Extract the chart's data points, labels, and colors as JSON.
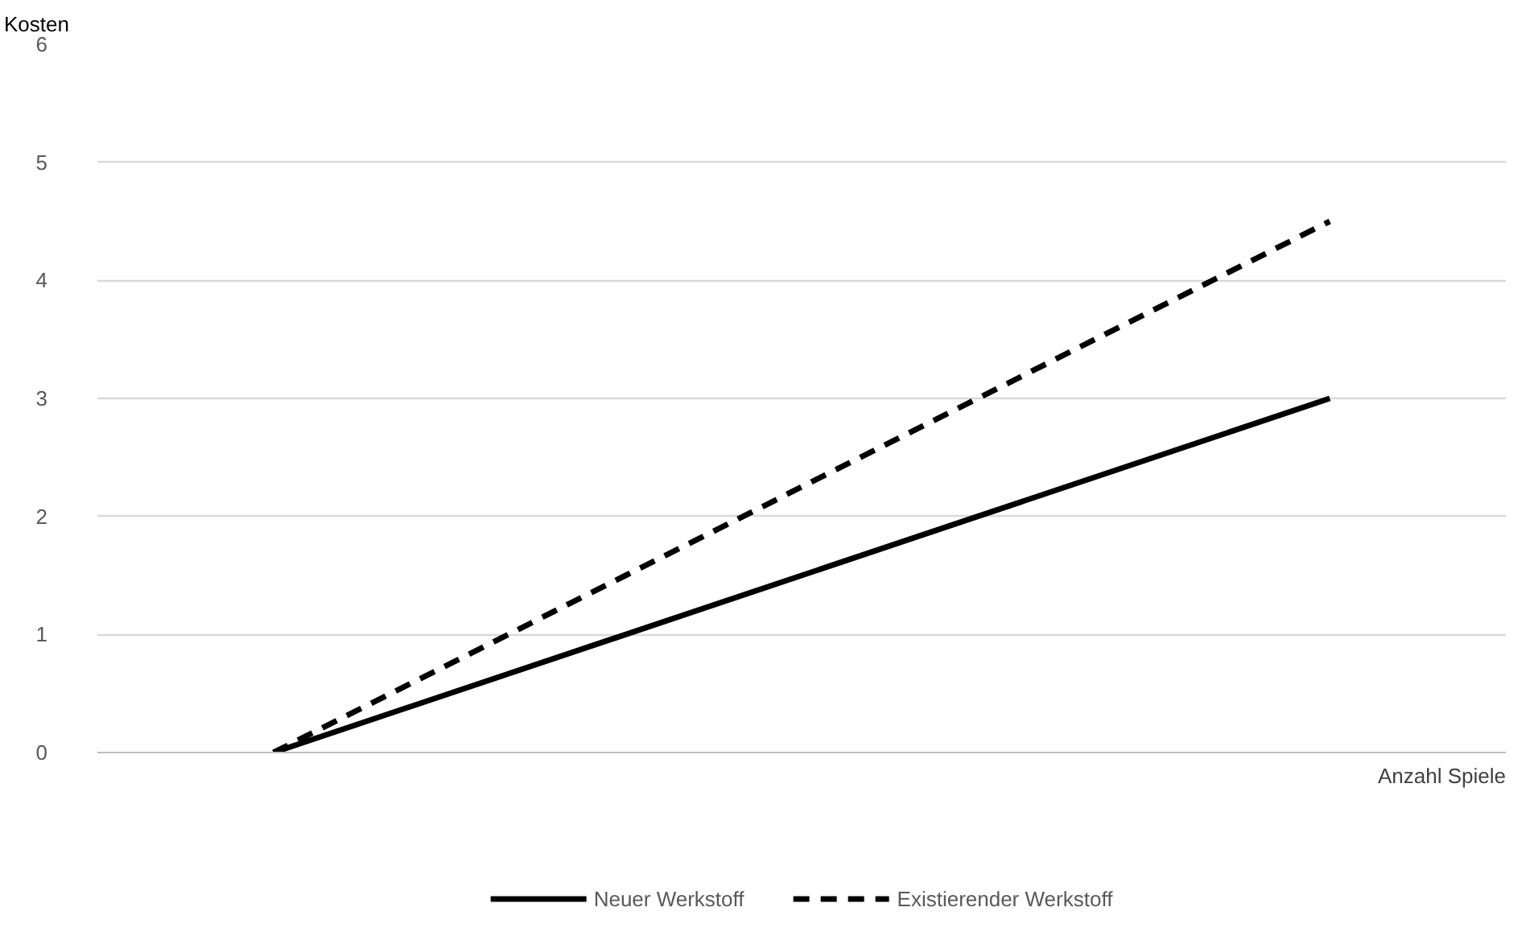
{
  "chart_data": {
    "type": "line",
    "ylabel": "Kosten",
    "xlabel": "Anzahl Spiele",
    "categories": [
      null,
      null,
      null,
      null
    ],
    "series": [
      {
        "name": "Neuer Werkstoff",
        "color": "#000000",
        "values": [
          0,
          1,
          2,
          3
        ],
        "line_style": "solid"
      },
      {
        "name": "Existierender Werkstoff",
        "color": "#000000",
        "values": [
          0,
          1.5,
          3,
          4.5
        ],
        "line_style": "dashed"
      }
    ],
    "ylim": [
      0,
      6
    ],
    "yticks": [
      0,
      1,
      2,
      3,
      4,
      5,
      6
    ],
    "grid": "y",
    "legend": "bottom",
    "tick_labels": "y",
    "marker": "none"
  }
}
